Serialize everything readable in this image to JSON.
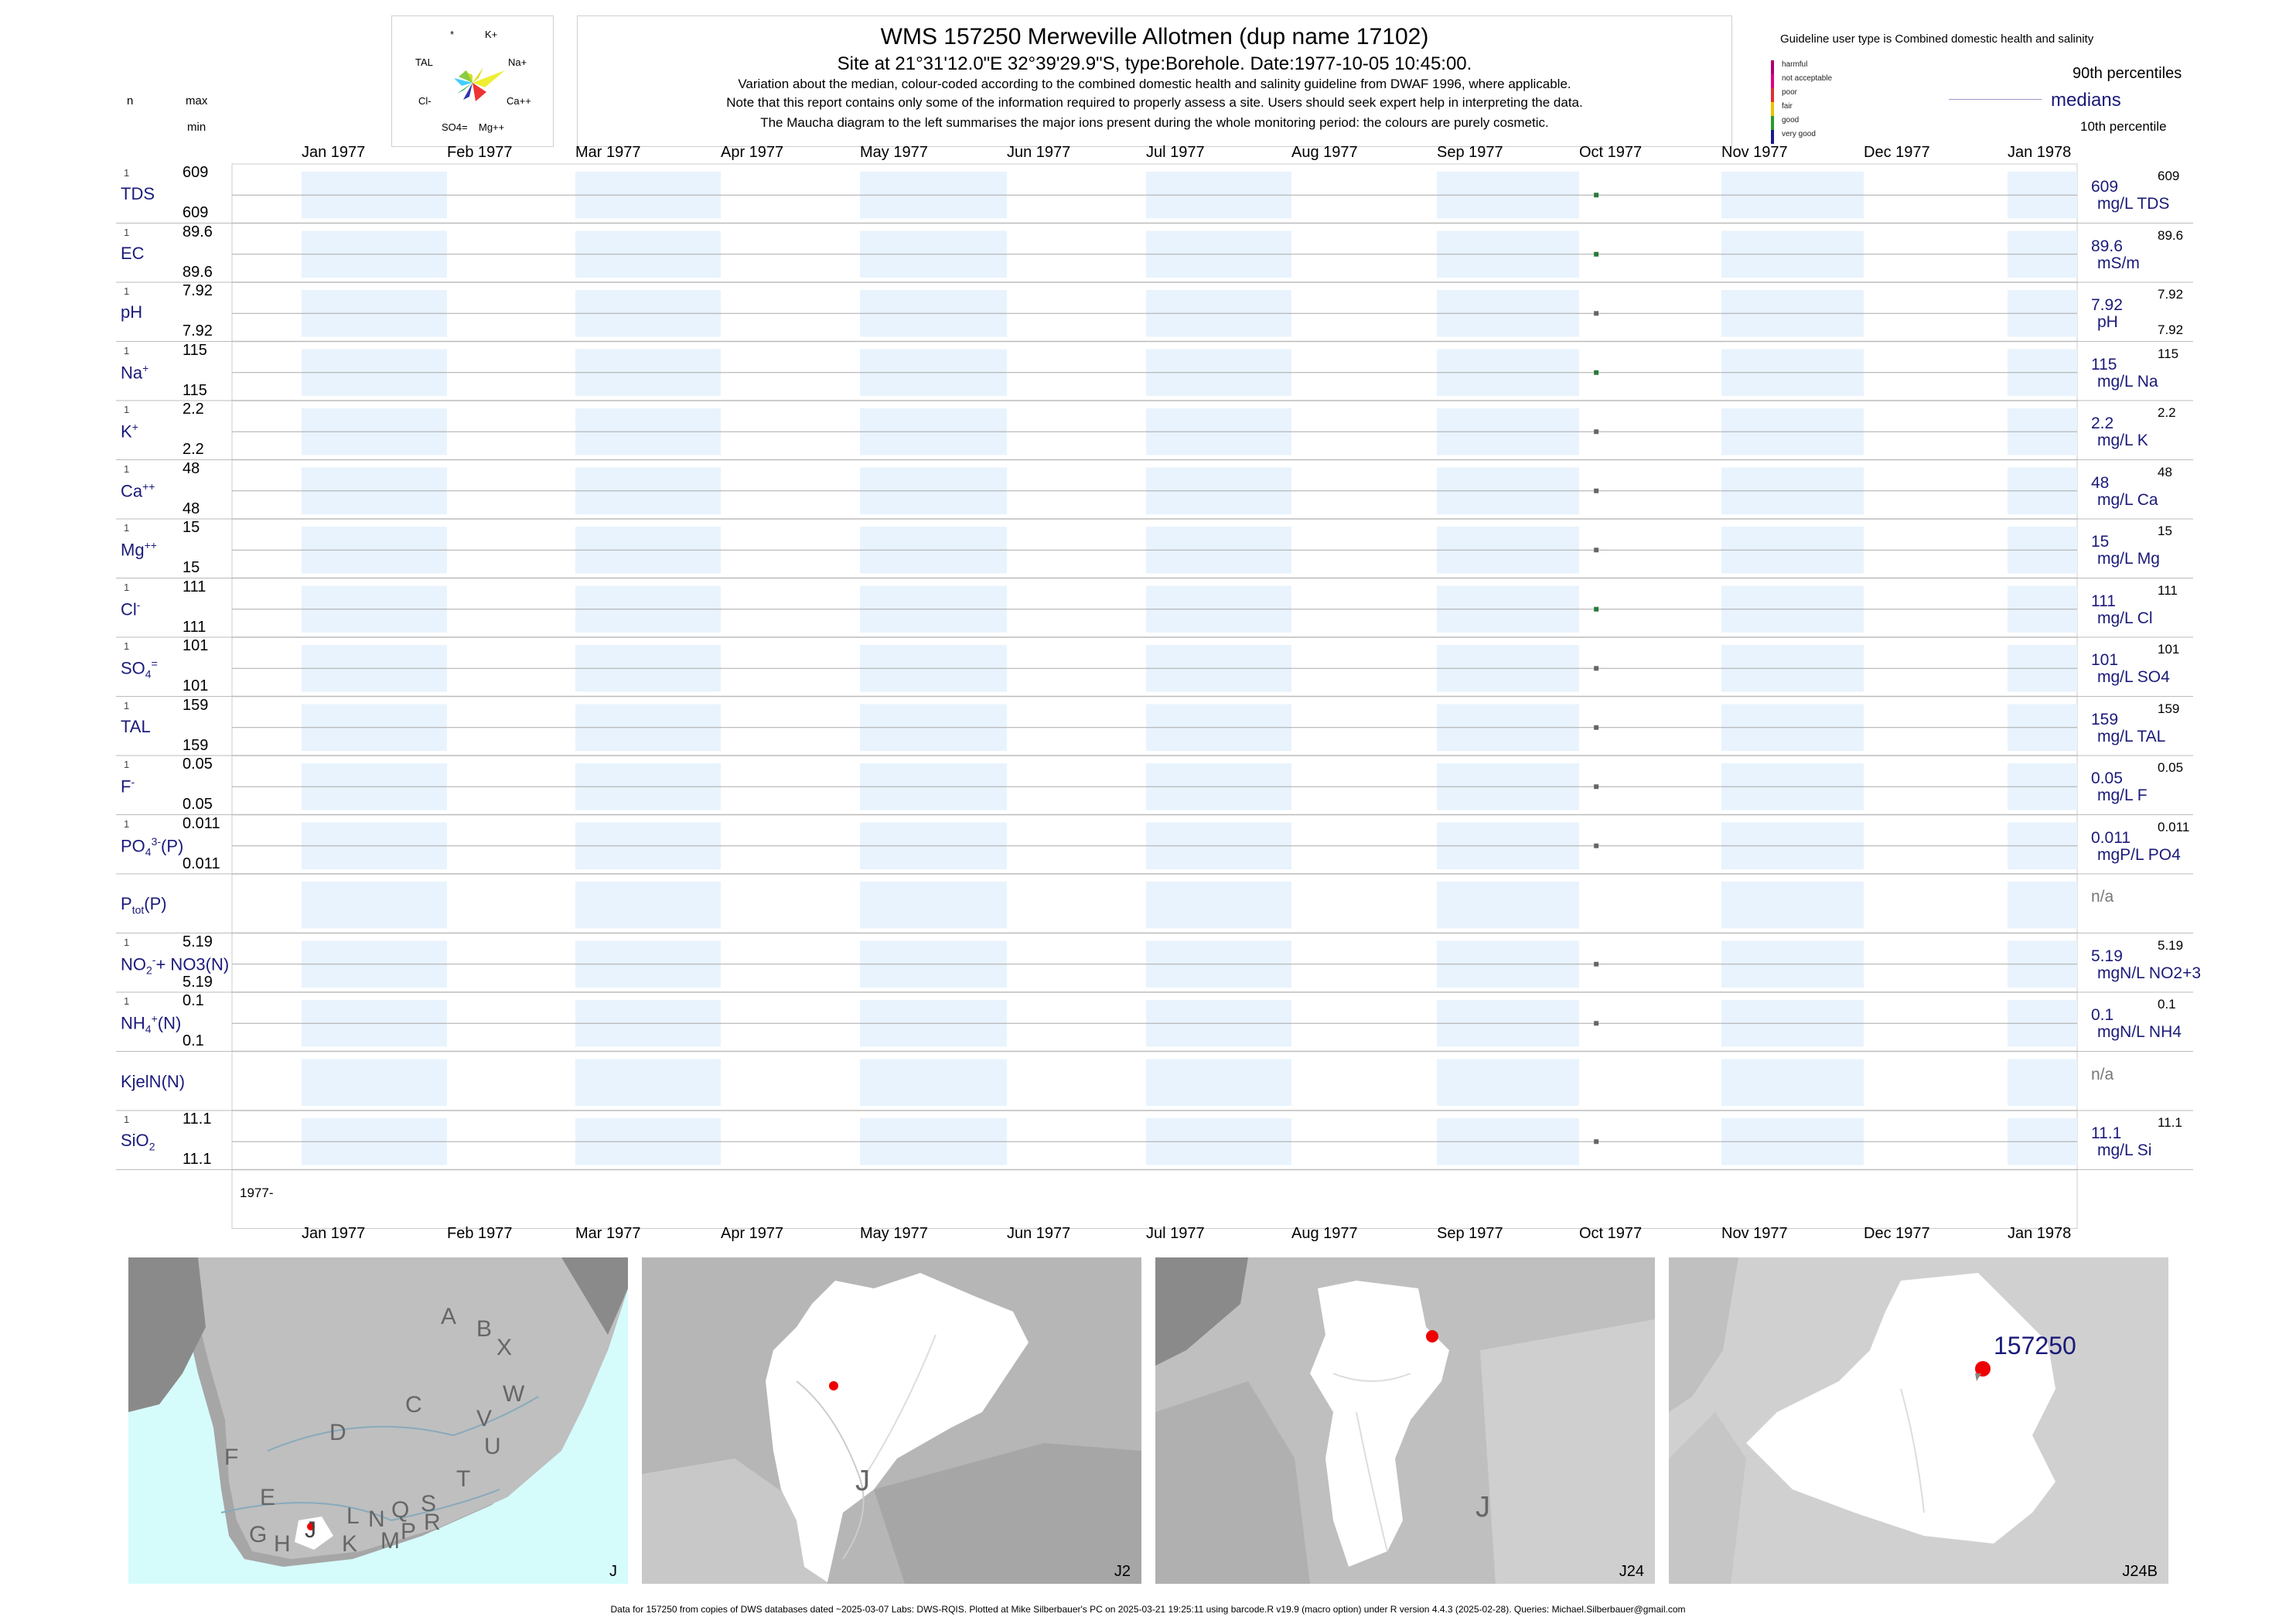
{
  "header": {
    "title": "WMS 157250  Merweville Allotmen (dup name 17102)",
    "subtitle": "Site at 21°31'12.0\"E 32°39'29.9\"S, type:Borehole. Date:1977-10-05 10:45:00.",
    "note1": "Variation about the median,  colour-coded according to the combined domestic health and salinity guideline from DWAF 1996, where applicable.",
    "note2": "Note that this report contains only some of the information required to properly assess a site. Users should seek expert help in interpreting the data.",
    "note3": "The Maucha diagram to the left summarises the major ions present during the whole monitoring period: the colours are purely cosmetic."
  },
  "left_header": {
    "n": "n",
    "max": "max",
    "min": "min"
  },
  "maucha": {
    "labels": [
      "*",
      "K+",
      "TAL",
      "Na+",
      "Cl-",
      "Ca++",
      "SO4=",
      "Mg++"
    ]
  },
  "legend": {
    "guideline": "Guideline user type is Combined domestic health and salinity",
    "classes": [
      {
        "label": "harmful",
        "color": "#b0006a"
      },
      {
        "label": "not acceptable",
        "color": "#e0007a"
      },
      {
        "label": "poor",
        "color": "#e03030"
      },
      {
        "label": "fair",
        "color": "#f0c000"
      },
      {
        "label": "good",
        "color": "#2a9a2a"
      },
      {
        "label": "very good",
        "color": "#1a1a8a"
      }
    ],
    "p90": "90th percentiles",
    "median": "medians",
    "p10": "10th percentile"
  },
  "chart_data": {
    "type": "scatter",
    "x_axis": {
      "ticks": [
        "Jan 1977",
        "Feb 1977",
        "Mar 1977",
        "Apr 1977",
        "May 1977",
        "Jun 1977",
        "Jul 1977",
        "Aug 1977",
        "Sep 1977",
        "Oct 1977",
        "Nov 1977",
        "Dec 1977",
        "Jan 1978"
      ],
      "range": [
        "1977-01-01",
        "1978-01-01"
      ],
      "bottom_label": "1977-"
    },
    "sample_date": "1977-10-05",
    "series": [
      {
        "label": "TDS",
        "sup": "",
        "sub": "",
        "n": "1",
        "max": "609",
        "min": "609",
        "median": "609",
        "p90": "609",
        "p10": "",
        "unit": "mg/L TDS",
        "color": "#2a7a3a"
      },
      {
        "label": "EC",
        "sup": "",
        "sub": "",
        "n": "1",
        "max": "89.6",
        "min": "89.6",
        "median": "89.6",
        "p90": "89.6",
        "p10": "",
        "unit": "mS/m",
        "color": "#2a7a3a"
      },
      {
        "label": "pH",
        "sup": "",
        "sub": "",
        "n": "1",
        "max": "7.92",
        "min": "7.92",
        "median": "7.92",
        "p90": "7.92",
        "p10": "7.92",
        "unit": "pH",
        "color": "#666666"
      },
      {
        "label": "Na",
        "sup": "+",
        "sub": "",
        "n": "1",
        "max": "115",
        "min": "115",
        "median": "115",
        "p90": "115",
        "p10": "",
        "unit": "mg/L Na",
        "color": "#2a7a3a"
      },
      {
        "label": "K",
        "sup": "+",
        "sub": "",
        "n": "1",
        "max": "2.2",
        "min": "2.2",
        "median": "2.2",
        "p90": "2.2",
        "p10": "",
        "unit": "mg/L K",
        "color": "#666666"
      },
      {
        "label": "Ca",
        "sup": "++",
        "sub": "",
        "n": "1",
        "max": "48",
        "min": "48",
        "median": "48",
        "p90": "48",
        "p10": "",
        "unit": "mg/L Ca",
        "color": "#666666"
      },
      {
        "label": "Mg",
        "sup": "++",
        "sub": "",
        "n": "1",
        "max": "15",
        "min": "15",
        "median": "15",
        "p90": "15",
        "p10": "",
        "unit": "mg/L Mg",
        "color": "#666666"
      },
      {
        "label": "Cl",
        "sup": "-",
        "sub": "",
        "n": "1",
        "max": "111",
        "min": "111",
        "median": "111",
        "p90": "111",
        "p10": "",
        "unit": "mg/L Cl",
        "color": "#2a7a3a"
      },
      {
        "label": "SO",
        "sup": "=",
        "sub": "4",
        "n": "1",
        "max": "101",
        "min": "101",
        "median": "101",
        "p90": "101",
        "p10": "",
        "unit": "mg/L SO4",
        "color": "#666666"
      },
      {
        "label": "TAL",
        "sup": "",
        "sub": "",
        "n": "1",
        "max": "159",
        "min": "159",
        "median": "159",
        "p90": "159",
        "p10": "",
        "unit": "mg/L TAL",
        "color": "#666666"
      },
      {
        "label": "F",
        "sup": "-",
        "sub": "",
        "n": "1",
        "max": "0.05",
        "min": "0.05",
        "median": "0.05",
        "p90": "0.05",
        "p10": "",
        "unit": "mg/L F",
        "color": "#666666"
      },
      {
        "label": "PO",
        "sup": "3-",
        "sub": "4",
        "suffix": "(P)",
        "n": "1",
        "max": "0.011",
        "min": "0.011",
        "median": "0.011",
        "p90": "0.011",
        "p10": "",
        "unit": "mgP/L PO4",
        "color": "#666666"
      },
      {
        "label": "P",
        "sup": "",
        "sub": "tot",
        "suffix": "(P)",
        "n": "",
        "max": "",
        "min": "",
        "median": "n/a",
        "p90": "",
        "p10": "",
        "unit": "",
        "color": null
      },
      {
        "label": "NO",
        "sup": "-",
        "sub": "2",
        "suffix": "+ NO3(N)",
        "n": "1",
        "max": "5.19",
        "min": "5.19",
        "median": "5.19",
        "p90": "5.19",
        "p10": "",
        "unit": "mgN/L NO2+3",
        "color": "#666666"
      },
      {
        "label": "NH",
        "sup": "+",
        "sub": "4",
        "suffix": "(N)",
        "n": "1",
        "max": "0.1",
        "min": "0.1",
        "median": "0.1",
        "p90": "0.1",
        "p10": "",
        "unit": "mgN/L NH4",
        "color": "#666666"
      },
      {
        "label": "KjelN(N)",
        "sup": "",
        "sub": "",
        "n": "",
        "max": "",
        "min": "",
        "median": "n/a",
        "p90": "",
        "p10": "",
        "unit": "",
        "color": null
      },
      {
        "label": "SiO",
        "sup": "",
        "sub": "2",
        "n": "1",
        "max": "11.1",
        "min": "11.1",
        "median": "11.1",
        "p90": "11.1",
        "p10": "",
        "unit": "mg/L Si",
        "color": "#666666"
      }
    ]
  },
  "maps": {
    "panel1_label": "J",
    "panel2_label": "J2",
    "panel3_label": "J24",
    "panel4_label": "J24B",
    "site_label": "157250",
    "panel1_regions": [
      "A",
      "B",
      "X",
      "W",
      "C",
      "V",
      "U",
      "D",
      "T",
      "F",
      "E",
      "S",
      "R",
      "Q",
      "L",
      "N",
      "M",
      "P",
      "K",
      "G",
      "H",
      "J"
    ],
    "panel2_region": "J",
    "panel3_region": "J"
  },
  "footer": "Data for 157250 from copies of DWS databases dated ~2025-03-07 Labs: DWS-RQIS. Plotted at Mike Silberbauer's PC on 2025-03-21 19:25:11 using barcode.R v19.9 (macro option) under R version 4.4.3 (2025-02-28). Queries: Michael.Silberbauer@gmail.com"
}
